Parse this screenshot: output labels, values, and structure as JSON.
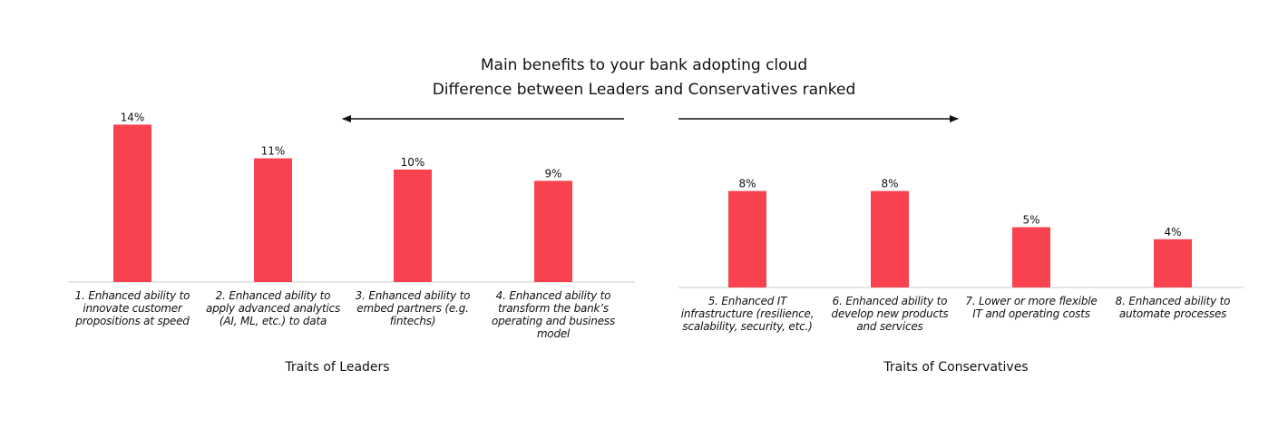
{
  "chart_data": [
    {
      "type": "bar",
      "title": "Main benefits to your bank adopting cloud",
      "subtitle": "Difference between Leaders and Conservatives ranked",
      "group_label": "Traits of Leaders",
      "categories": [
        "1. Enhanced ability to innovate customer propositions at speed",
        "2. Enhanced ability to apply advanced analytics (AI, ML, etc.) to data",
        "3. Enhanced ability to embed partners (e.g. fintechs)",
        "4. Enhanced ability to transform the bank’s operating and business model"
      ],
      "values": [
        14,
        11,
        10,
        9
      ],
      "data_labels": [
        "14%",
        "11%",
        "10%",
        "9%"
      ],
      "unit": "%",
      "ylim": [
        0,
        14
      ],
      "arrow": "left",
      "color": "#f8424f"
    },
    {
      "type": "bar",
      "group_label": "Traits of Conservatives",
      "categories": [
        "5. Enhanced IT infrastructure (resilience, scalability, security, etc.)",
        "6. Enhanced ability to develop new products and services",
        "7. Lower or more flexible IT and operating costs",
        "8. Enhanced ability to automate processes"
      ],
      "values": [
        8,
        8,
        5,
        4
      ],
      "data_labels": [
        "8%",
        "8%",
        "5%",
        "4%"
      ],
      "unit": "%",
      "ylim": [
        0,
        14
      ],
      "arrow": "right",
      "color": "#f8424f"
    }
  ]
}
